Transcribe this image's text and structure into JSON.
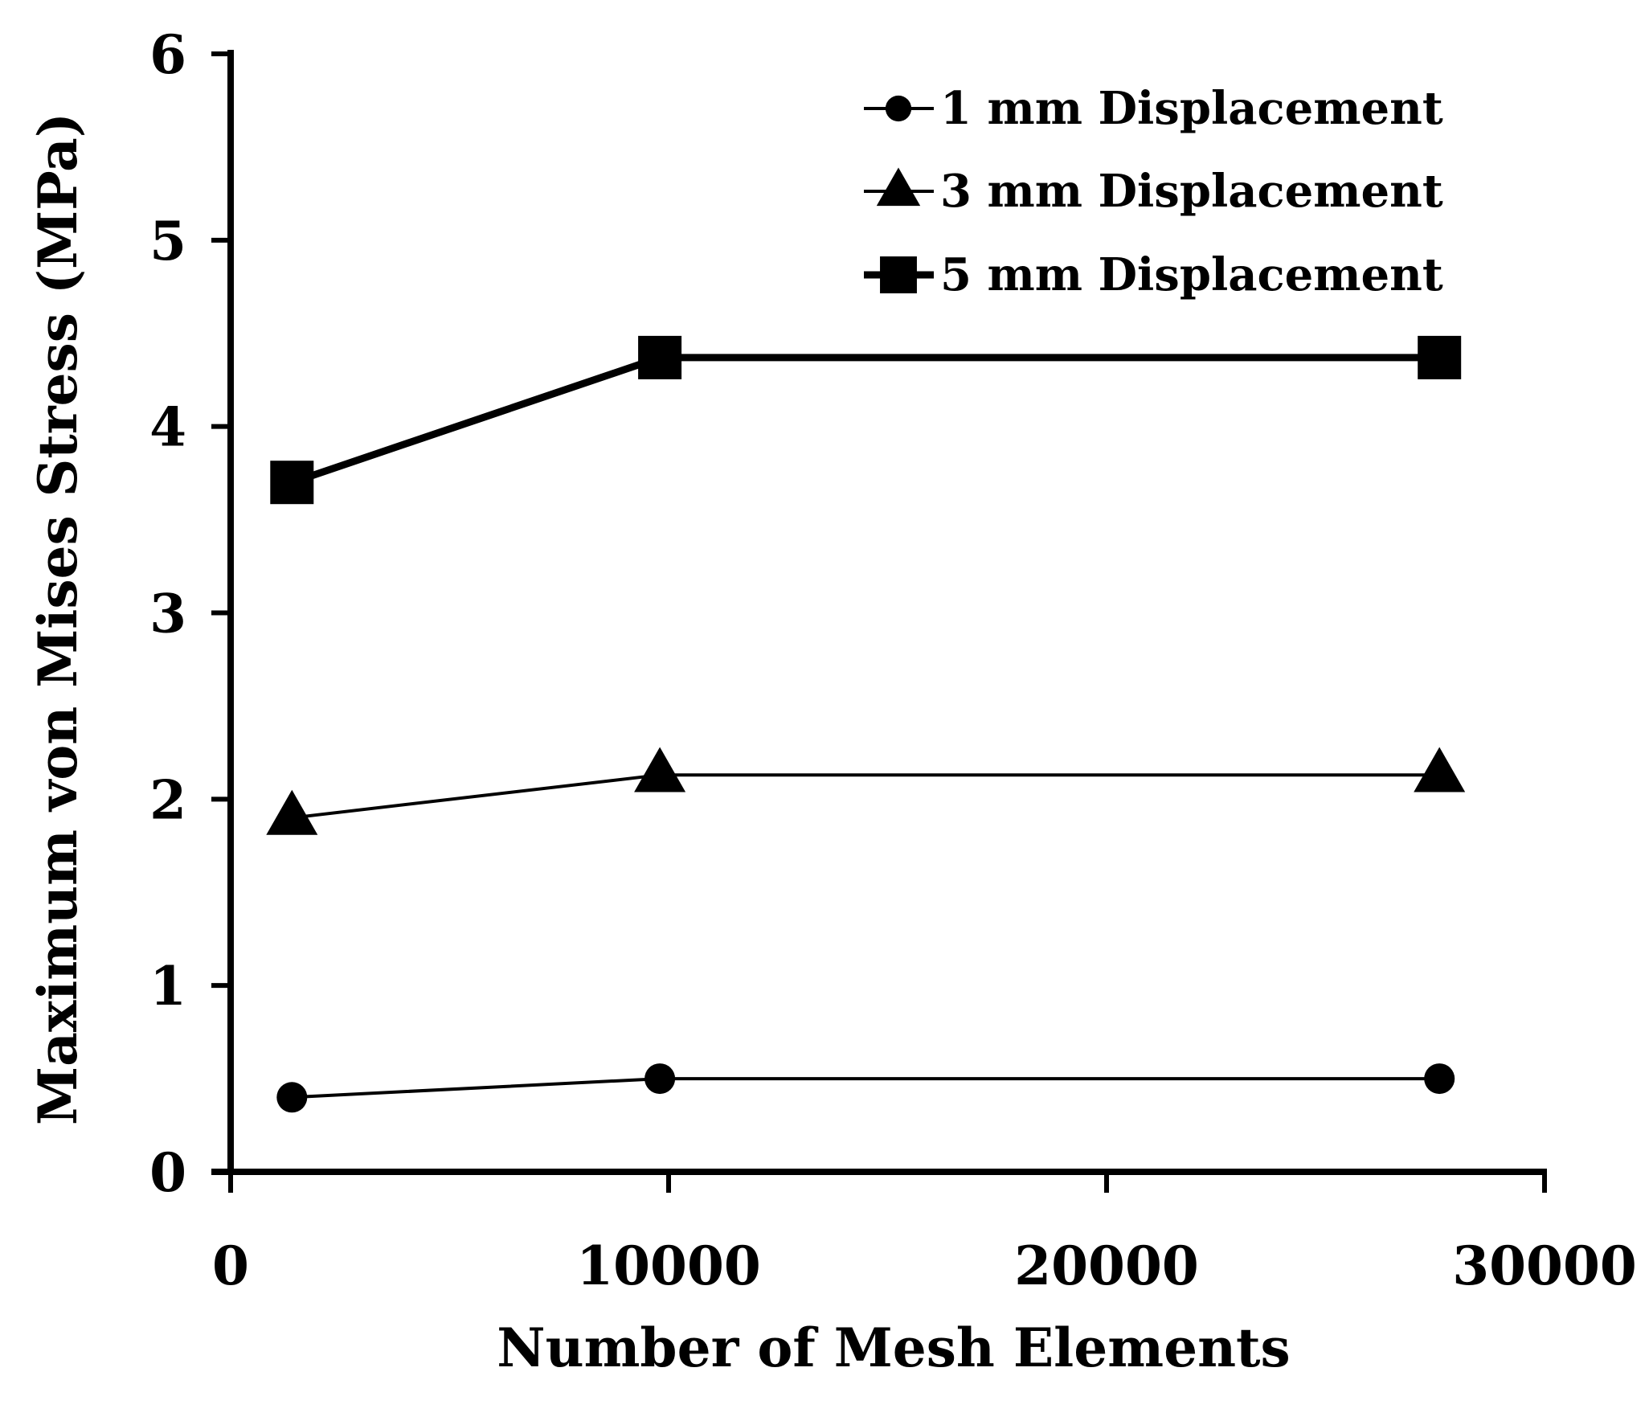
{
  "chart_data": {
    "type": "line",
    "title": "",
    "xlabel": "Number of Mesh Elements",
    "ylabel": "Maximum von Mises Stress (MPa)",
    "xlim": [
      0,
      30000
    ],
    "ylim": [
      0,
      6
    ],
    "xticks": [
      0,
      10000,
      20000,
      30000
    ],
    "yticks": [
      0,
      1,
      2,
      3,
      4,
      5,
      6
    ],
    "xtick_labels": [
      "0",
      "10000",
      "20000",
      "30000"
    ],
    "ytick_labels": [
      "0",
      "1",
      "2",
      "3",
      "4",
      "5",
      "6"
    ],
    "grid": false,
    "legend_position": "top-right",
    "series": [
      {
        "name": "1 mm Displacement",
        "marker": "circle",
        "x": [
          1400,
          9800,
          27600
        ],
        "y": [
          0.4,
          0.5,
          0.5
        ]
      },
      {
        "name": "3 mm Displacement",
        "marker": "triangle",
        "x": [
          1400,
          9800,
          27600
        ],
        "y": [
          1.9,
          2.13,
          2.13
        ]
      },
      {
        "name": "5 mm Displacement",
        "marker": "square",
        "x": [
          1400,
          9800,
          27600
        ],
        "y": [
          3.7,
          4.37,
          4.37
        ]
      }
    ],
    "colors": {
      "line": "#000000",
      "background": "#ffffff"
    }
  }
}
